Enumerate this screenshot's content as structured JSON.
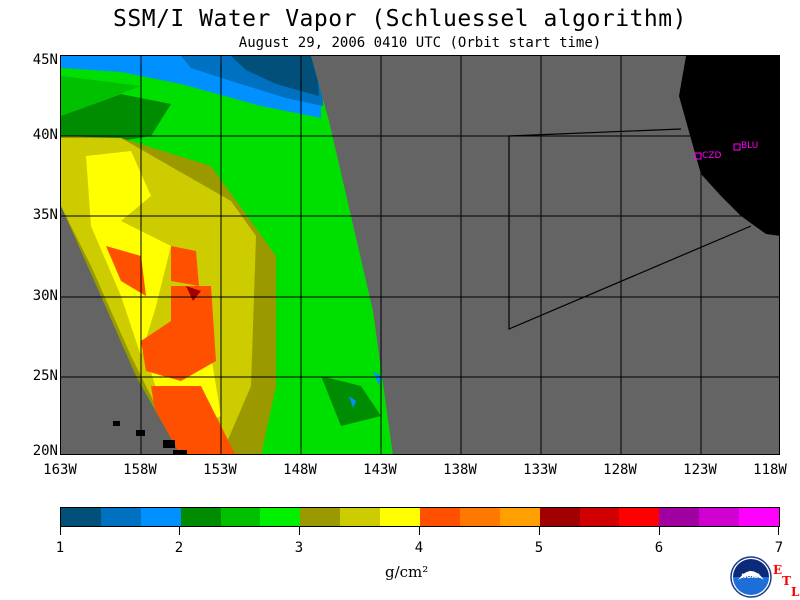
{
  "title": "SSM/I Water Vapor (Schluessel algorithm)",
  "subtitle": "August 29, 2006  0410 UTC  (Orbit start time)",
  "lat_labels": [
    "45N",
    "40N",
    "35N",
    "30N",
    "25N",
    "20N"
  ],
  "lon_labels": [
    "163W",
    "158W",
    "153W",
    "148W",
    "143W",
    "138W",
    "133W",
    "128W",
    "123W",
    "118W"
  ],
  "stations": [
    {
      "label": "CZD"
    },
    {
      "label": "BLU"
    }
  ],
  "colorbar": {
    "labels": [
      "1",
      "2",
      "3",
      "4",
      "5",
      "6",
      "7"
    ],
    "units": "g/cm²",
    "colors": [
      "#00507a",
      "#0070c0",
      "#0090ff",
      "#008c00",
      "#00c000",
      "#00f000",
      "#9a9a00",
      "#cccc00",
      "#ffff00",
      "#ff5000",
      "#ff7800",
      "#ffa000",
      "#a00000",
      "#d00000",
      "#ff0000",
      "#a000a0",
      "#d000d0",
      "#ff00ff"
    ]
  },
  "colors": {
    "land": "#000000",
    "no_data": "#646464",
    "station_marker": "#ff00ff",
    "etl_text": "#ff0000"
  },
  "logo": {
    "etl_letters": [
      "E",
      "T",
      "L"
    ]
  }
}
